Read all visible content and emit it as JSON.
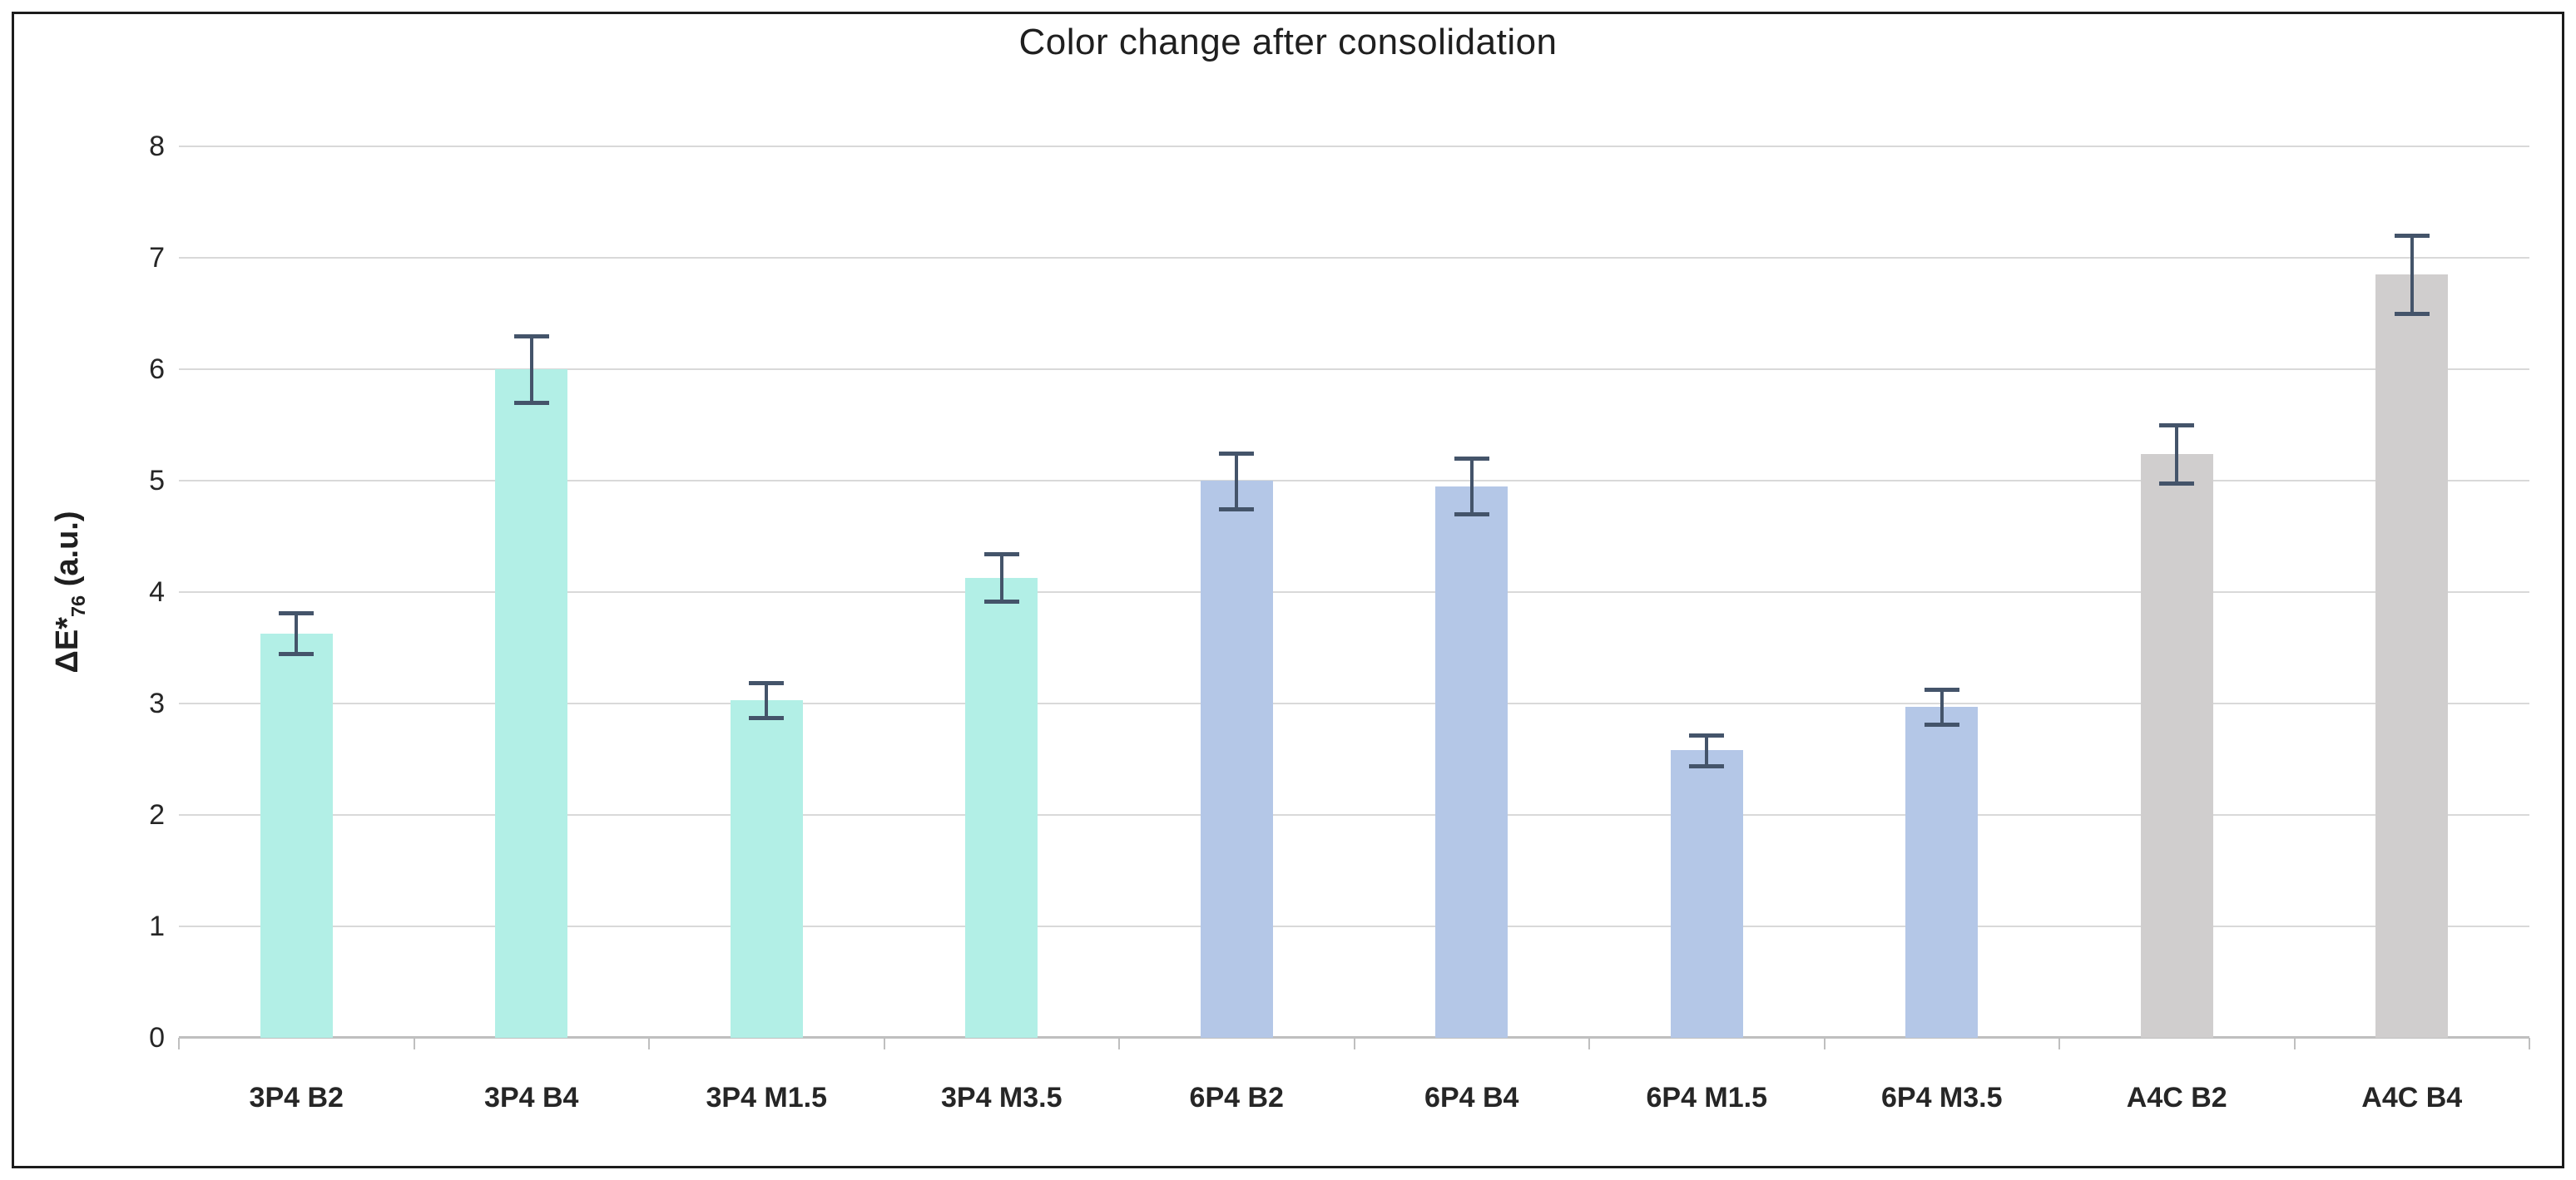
{
  "figure": {
    "title": "Color change after consolidation",
    "y_axis_title": {
      "prefix": "ΔE*",
      "subscript": "76",
      "suffix": " (a.u.)"
    }
  },
  "chart_data": {
    "type": "bar",
    "title": "Color change after consolidation",
    "xlabel": "",
    "ylabel": "ΔE*76 (a.u.)",
    "ylim": [
      0,
      8
    ],
    "yticks": [
      0,
      1,
      2,
      3,
      4,
      5,
      6,
      7,
      8
    ],
    "grid": true,
    "legend": false,
    "categories": [
      "3P4 B2",
      "3P4 B4",
      "3P4 M1.5",
      "3P4 M3.5",
      "6P4 B2",
      "6P4 B4",
      "6P4 M1.5",
      "6P4 M3.5",
      "A4C B2",
      "A4C B4"
    ],
    "values": [
      3.63,
      6.0,
      3.03,
      4.13,
      5.0,
      4.95,
      2.58,
      2.97,
      5.24,
      6.85
    ],
    "error_bars": [
      0.18,
      0.3,
      0.16,
      0.21,
      0.25,
      0.25,
      0.14,
      0.16,
      0.26,
      0.35
    ],
    "bar_color_keys": [
      "teal",
      "teal",
      "teal",
      "teal",
      "blue",
      "blue",
      "blue",
      "blue",
      "grey",
      "grey"
    ],
    "palette": {
      "teal": "#B2EFE6",
      "blue": "#B4C7E7",
      "grey": "#D0CECE",
      "error_bar": "#44546A",
      "gridline": "#D9D9D9",
      "axis_line": "#BFBFBF",
      "text": "#262626",
      "border": "#1C1C1C"
    }
  }
}
